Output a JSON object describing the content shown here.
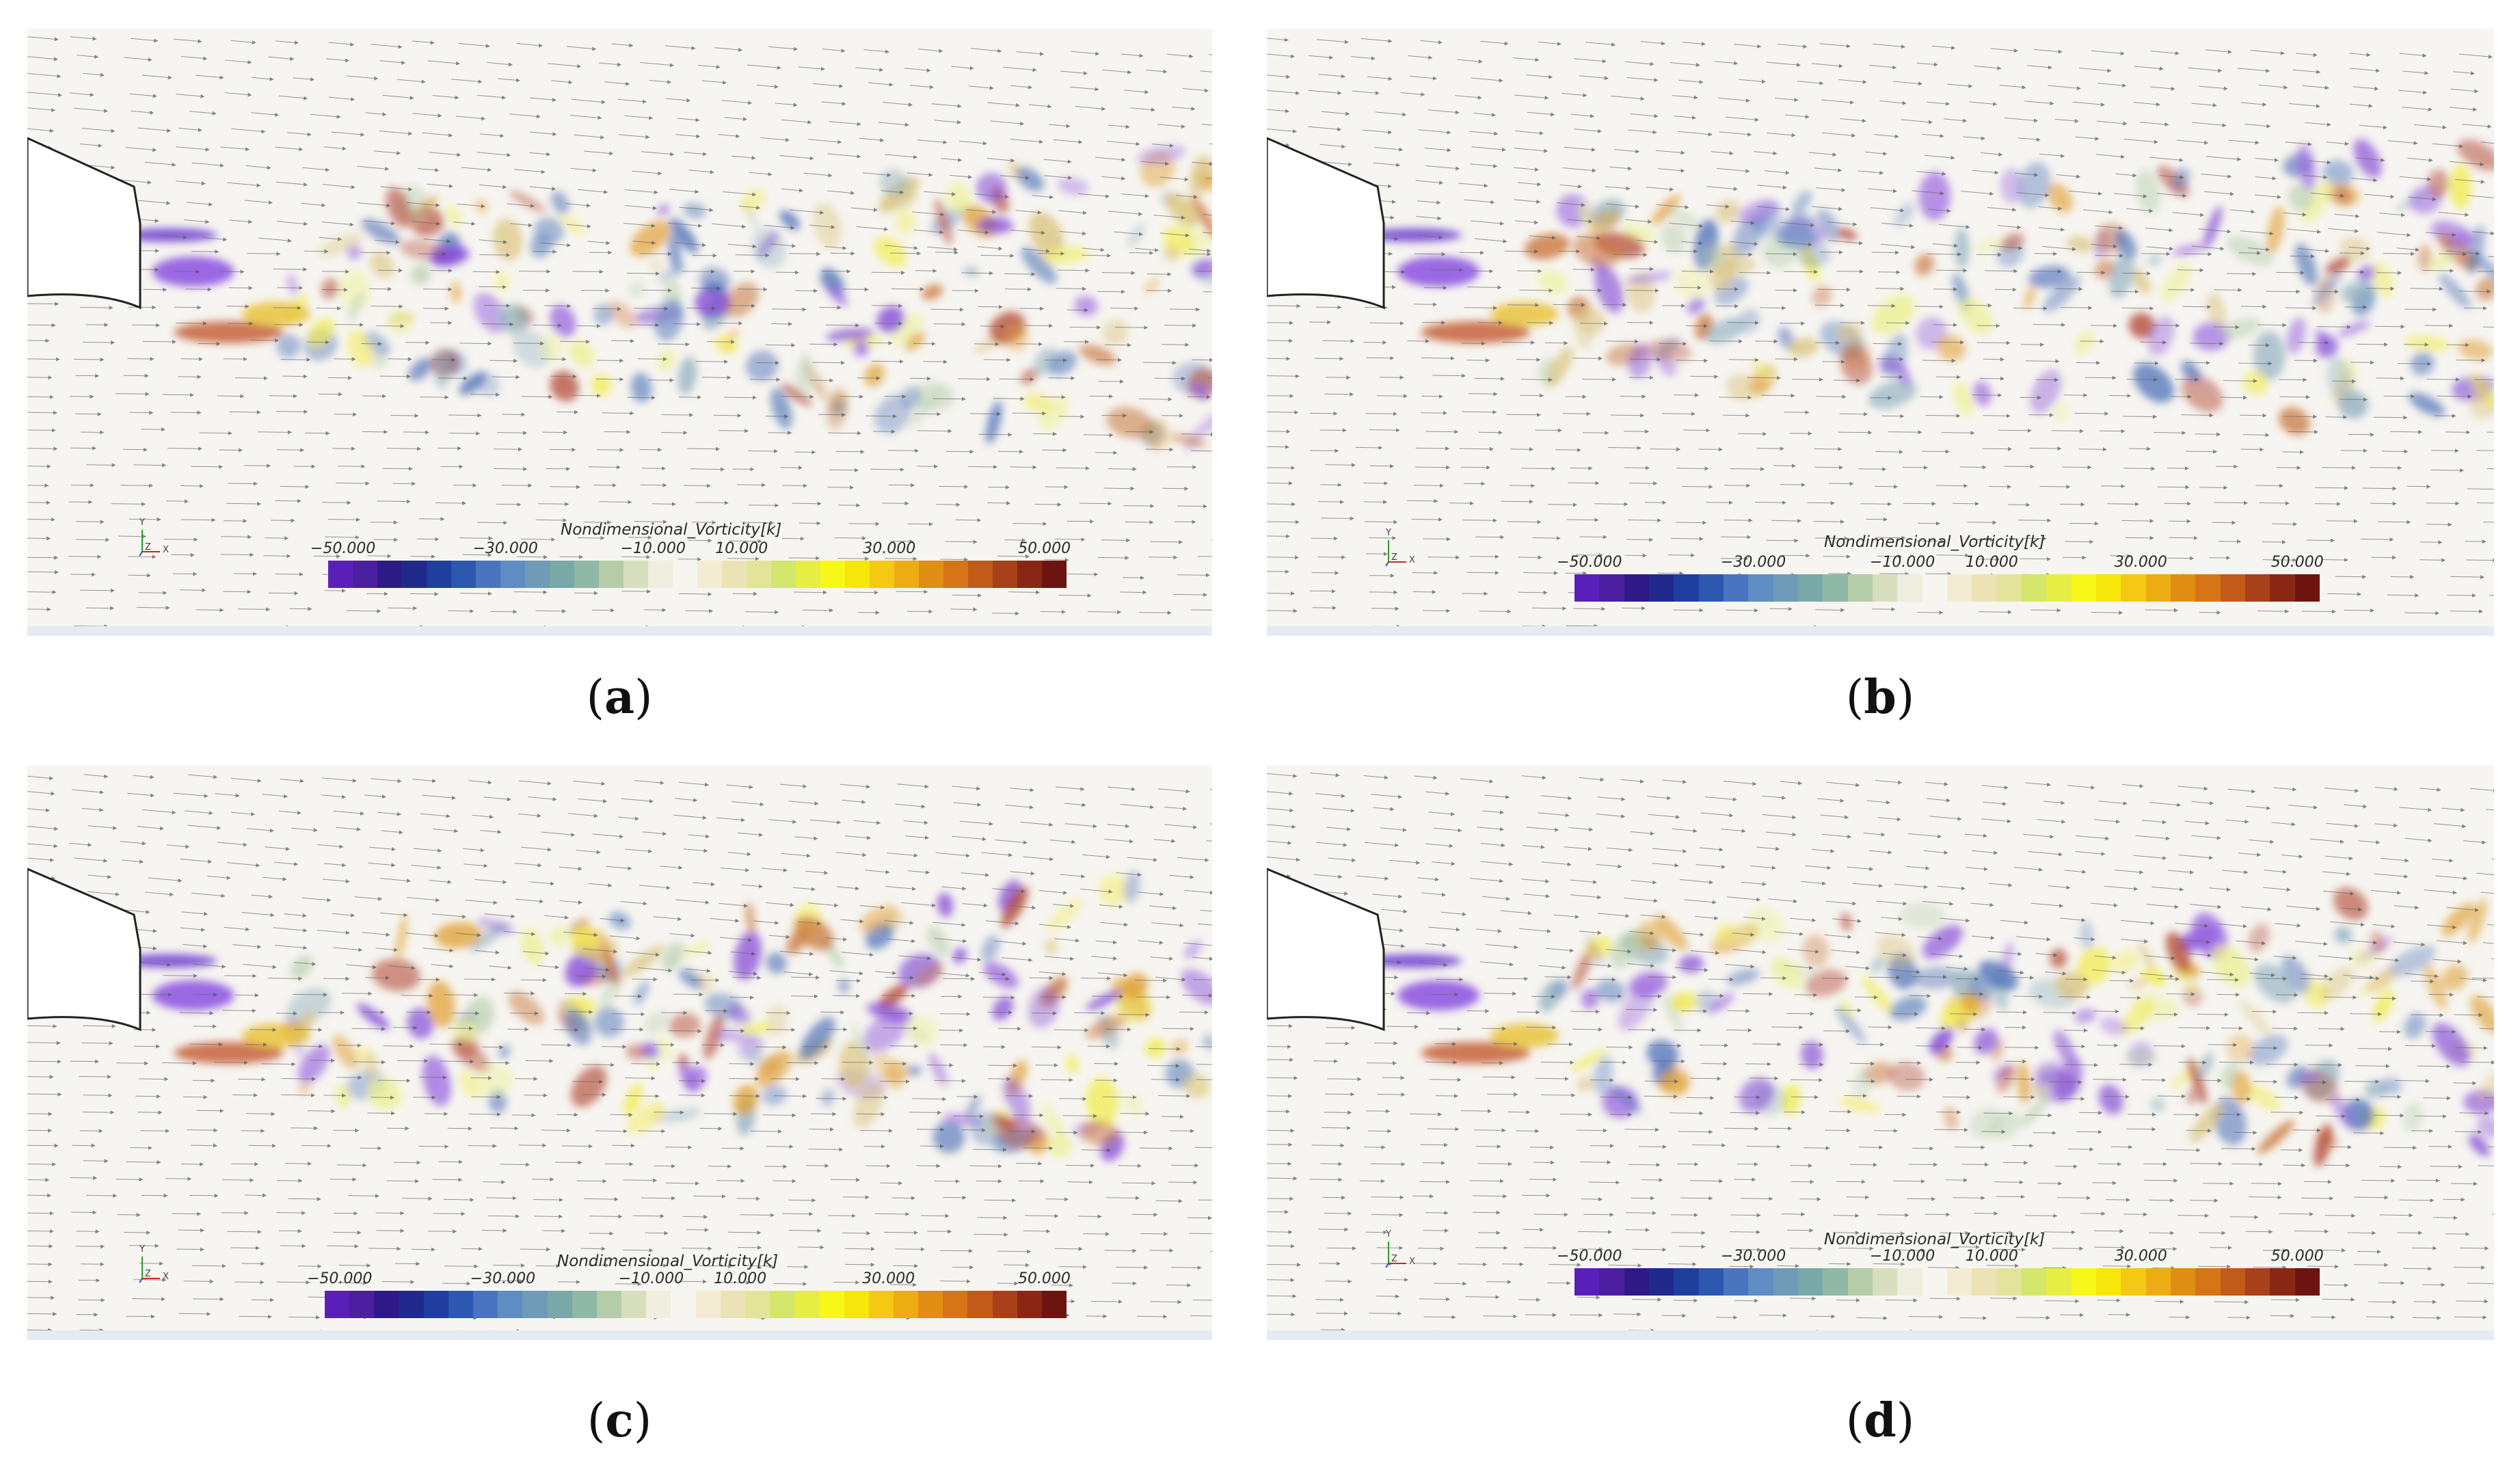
{
  "panels": [
    {
      "id": "a",
      "caption_letter": "a"
    },
    {
      "id": "b",
      "caption_letter": "b"
    },
    {
      "id": "c",
      "caption_letter": "c"
    },
    {
      "id": "d",
      "caption_letter": "d"
    }
  ],
  "colorbar": {
    "title": "Nondimensional_Vorticity[k]",
    "ticks": [
      "−50.000",
      "−30.000",
      "−10.000",
      "10.000",
      "30.000",
      "50.000"
    ],
    "colors": [
      "#5a1fb8",
      "#4b1fa0",
      "#2d1a86",
      "#1f2a8c",
      "#1f3e9e",
      "#2d58b0",
      "#4a74bf",
      "#5f8cc2",
      "#6f9ab8",
      "#7aa8a8",
      "#8fb8a6",
      "#b5cca8",
      "#d8dfbe",
      "#efeedf",
      "#f7f5ef",
      "#f3ecd2",
      "#ebe3b6",
      "#e2e49a",
      "#d5e66c",
      "#e6ee44",
      "#f7f71a",
      "#f6e60a",
      "#f5c814",
      "#eeac14",
      "#e18e14",
      "#d67418",
      "#c25a1a",
      "#a8401a",
      "#8a2614",
      "#6e1410"
    ]
  },
  "axis_triad": {
    "y": "Y",
    "z": "Z",
    "x": "X"
  },
  "caption_open": "(",
  "caption_close": ")"
}
